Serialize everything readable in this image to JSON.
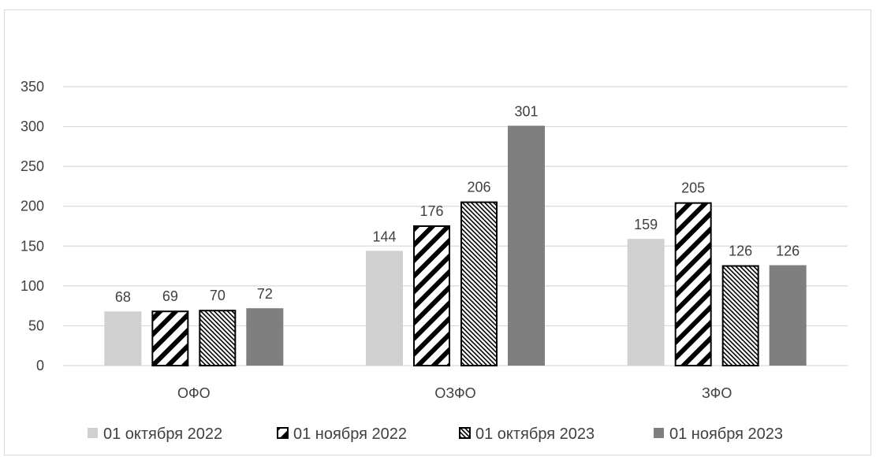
{
  "chart_data": {
    "type": "bar",
    "title": "",
    "xlabel": "",
    "ylabel": "",
    "ylim": [
      0,
      350
    ],
    "yticks": [
      0,
      50,
      100,
      150,
      200,
      250,
      300,
      350
    ],
    "grid": true,
    "legend_position": "bottom",
    "categories": [
      "ОФО",
      "ОЗФО",
      "ЗФО"
    ],
    "series": [
      {
        "name": "01 октября 2022",
        "values": [
          68,
          144,
          159
        ],
        "pattern": "solid-light",
        "color": "#d0d0d0"
      },
      {
        "name": "01 ноября 2022",
        "values": [
          69,
          176,
          205
        ],
        "pattern": "wide-diagonal",
        "color": "#000000"
      },
      {
        "name": "01 октября 2023",
        "values": [
          70,
          206,
          126
        ],
        "pattern": "fine-diagonal",
        "color": "#000000"
      },
      {
        "name": "01 ноября 2023",
        "values": [
          72,
          301,
          126
        ],
        "pattern": "solid-dark",
        "color": "#7f7f7f"
      }
    ]
  }
}
